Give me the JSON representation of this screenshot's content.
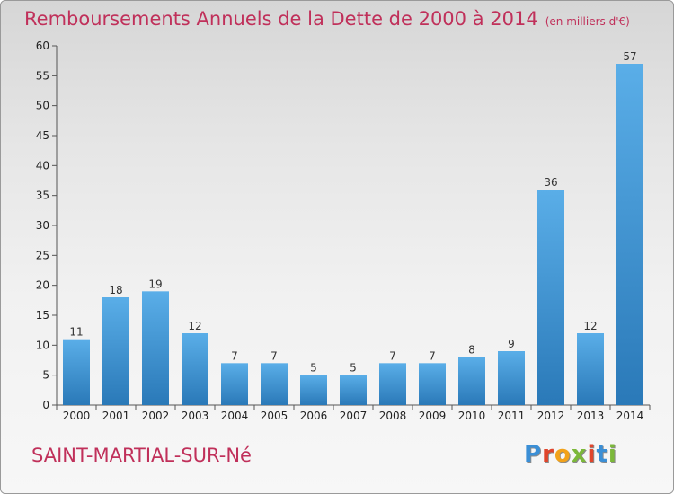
{
  "header": {
    "title": "Remboursements Annuels de la Dette de 2000 à 2014",
    "subtitle": "(en milliers d'€)"
  },
  "footer": {
    "commune": "SAINT-MARTIAL-SUR-Né",
    "logo_letters": [
      "P",
      "r",
      "o",
      "x",
      "i",
      "t",
      "i"
    ],
    "logo_colors": [
      "#3b8fd6",
      "#e0452b",
      "#f2a21a",
      "#7cb83a",
      "#e0452b",
      "#3b8fd6",
      "#7cb83a"
    ]
  },
  "colors": {
    "bar_light": "#5aaee8",
    "bar_dark": "#2a79b8",
    "title": "#c0305a"
  },
  "chart_data": {
    "type": "bar",
    "title": "Remboursements Annuels de la Dette de 2000 à 2014",
    "subtitle": "(en milliers d'€)",
    "categories": [
      "2000",
      "2001",
      "2002",
      "2003",
      "2004",
      "2005",
      "2006",
      "2007",
      "2008",
      "2009",
      "2010",
      "2011",
      "2012",
      "2013",
      "2014"
    ],
    "values": [
      11,
      18,
      19,
      12,
      7,
      7,
      5,
      5,
      7,
      7,
      8,
      9,
      36,
      12,
      57
    ],
    "xlabel": "",
    "ylabel": "",
    "ylim": [
      0,
      60
    ],
    "yticks": [
      0,
      5,
      10,
      15,
      20,
      25,
      30,
      35,
      40,
      45,
      50,
      55,
      60
    ],
    "grid": false,
    "legend": "none"
  }
}
